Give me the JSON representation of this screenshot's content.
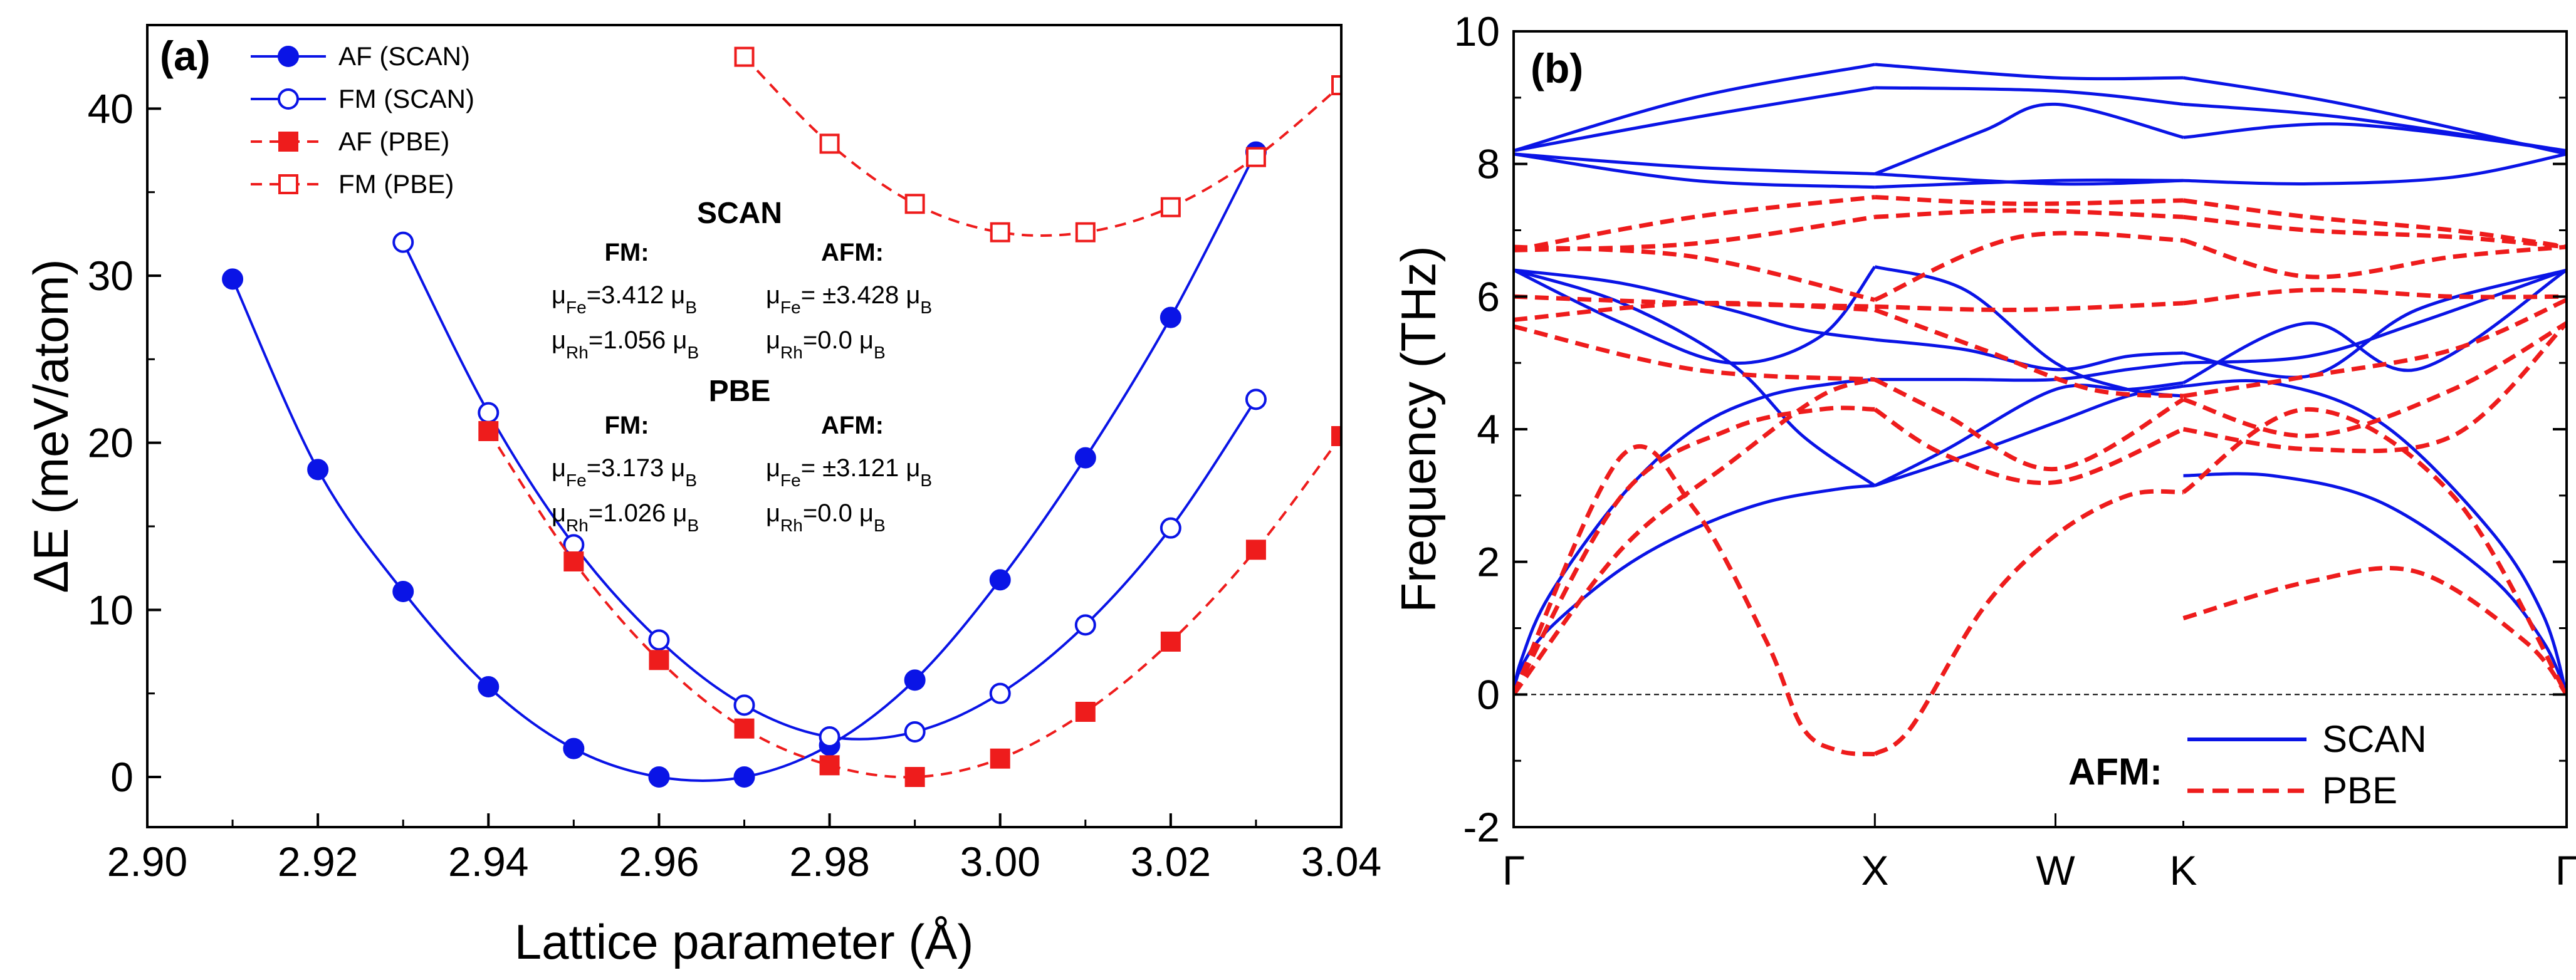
{
  "chart_data": [
    {
      "panel": "(a)",
      "type": "line",
      "xlabel": "Lattice parameter (Å)",
      "ylabel": "ΔE (meV/atom)",
      "xlim": [
        2.9,
        3.04
      ],
      "ylim": [
        -3,
        45
      ],
      "xticks": [
        2.9,
        2.92,
        2.94,
        2.96,
        2.98,
        3.0,
        3.02,
        3.04
      ],
      "xtick_labels": [
        "2.90",
        "2.92",
        "2.94",
        "2.96",
        "2.98",
        "3.00",
        "3.02",
        "3.04"
      ],
      "yticks": [
        0,
        10,
        20,
        30,
        40
      ],
      "ytick_labels": [
        "0",
        "10",
        "20",
        "30",
        "40"
      ],
      "series": [
        {
          "name": "AF (SCAN)",
          "color": "#0a14e6",
          "line": "solid",
          "marker": "circle",
          "fill": "filled",
          "x": [
            2.91,
            2.92,
            2.93,
            2.94,
            2.95,
            2.96,
            2.97,
            2.98,
            2.99,
            3.0,
            3.01,
            3.02,
            3.03
          ],
          "y": [
            29.8,
            18.4,
            11.1,
            5.4,
            1.7,
            0.0,
            0.0,
            1.9,
            5.8,
            11.8,
            19.1,
            27.5,
            37.4
          ]
        },
        {
          "name": "FM    (SCAN)",
          "color": "#0a14e6",
          "line": "solid",
          "marker": "circle",
          "fill": "open",
          "x": [
            2.93,
            2.94,
            2.95,
            2.96,
            2.97,
            2.98,
            2.99,
            3.0,
            3.01,
            3.02,
            3.03
          ],
          "y": [
            32.0,
            21.8,
            13.9,
            8.2,
            4.3,
            2.4,
            2.7,
            5.0,
            9.1,
            14.9,
            22.6
          ]
        },
        {
          "name": "AF  (PBE)",
          "color": "#ee1c1c",
          "line": "dashed",
          "marker": "square",
          "fill": "filled",
          "x": [
            2.94,
            2.95,
            2.96,
            2.97,
            2.98,
            2.99,
            3.0,
            3.01,
            3.02,
            3.03,
            3.04
          ],
          "y": [
            20.7,
            12.9,
            7.0,
            2.9,
            0.7,
            0.0,
            1.1,
            3.9,
            8.1,
            13.6,
            20.4
          ]
        },
        {
          "name": "FM    (PBE)",
          "color": "#ee1c1c",
          "line": "dashed",
          "marker": "square",
          "fill": "open",
          "x": [
            2.97,
            2.98,
            2.99,
            3.0,
            3.01,
            3.02,
            3.03,
            3.04
          ],
          "y": [
            43.1,
            37.9,
            34.3,
            32.6,
            32.6,
            34.1,
            37.1,
            41.4
          ]
        }
      ],
      "annotations": {
        "scan_title": "SCAN",
        "pbe_title": "PBE",
        "fm_label": "FM:",
        "afm_label": "AFM:",
        "scan_fm_fe": "μFe=3.412 μB",
        "scan_fm_rh": "μRh=1.056 μB",
        "scan_afm_fe": "μFe= ±3.428 μB",
        "scan_afm_rh": "μRh=0.0 μB",
        "pbe_fm_fe": "μFe=3.173 μB",
        "pbe_fm_rh": "μRh=1.026 μB",
        "pbe_afm_fe": "μFe= ±3.121 μB",
        "pbe_afm_rh": "μRh=0.0 μB"
      }
    },
    {
      "panel": "(b)",
      "type": "line",
      "xlabel": "",
      "ylabel": "Frequency (THz)",
      "ylim": [
        -2,
        10
      ],
      "yticks": [
        -2,
        0,
        2,
        4,
        6,
        8,
        10
      ],
      "ytick_labels": [
        "-2",
        "0",
        "2",
        "4",
        "6",
        "8",
        "10"
      ],
      "kpoints": [
        {
          "label": "Γ",
          "pos": 0.0
        },
        {
          "label": "X",
          "pos": 1.0
        },
        {
          "label": "W",
          "pos": 1.5
        },
        {
          "label": "K",
          "pos": 1.854
        },
        {
          "label": "Γ",
          "pos": 2.915
        }
      ],
      "legend_title": "AFM:",
      "legend": [
        {
          "name": "SCAN",
          "color": "#0a14e6",
          "line": "solid"
        },
        {
          "name": "PBE",
          "color": "#ee1c1c",
          "line": "dashed"
        }
      ],
      "series": [
        {
          "name": "SCAN",
          "color": "#0a14e6",
          "line": "solid",
          "bands": [
            {
              "x": [
                0,
                0.02,
                0.1,
                0.3,
                0.5,
                0.7,
                0.9,
                1.0
              ],
              "y": [
                0,
                0.4,
                1.0,
                1.9,
                2.5,
                2.9,
                3.1,
                3.15
              ]
            },
            {
              "x": [
                0,
                0.02,
                0.1,
                0.3,
                0.5,
                0.7,
                0.9,
                1.0
              ],
              "y": [
                0,
                0.5,
                1.5,
                3.0,
                4.0,
                4.5,
                4.7,
                4.75
              ]
            },
            {
              "x": [
                0,
                0.3,
                0.6,
                0.8,
                1.0
              ],
              "y": [
                6.4,
                5.9,
                5.0,
                3.9,
                3.15
              ]
            },
            {
              "x": [
                0,
                0.3,
                0.6,
                0.8,
                1.0
              ],
              "y": [
                6.4,
                6.2,
                5.8,
                5.5,
                5.35
              ]
            },
            {
              "x": [
                0,
                0.3,
                0.6,
                0.85,
                1.0
              ],
              "y": [
                6.4,
                5.6,
                5.0,
                5.4,
                6.45
              ]
            },
            {
              "x": [
                0,
                0.5,
                1.0
              ],
              "y": [
                8.15,
                7.95,
                7.85
              ]
            },
            {
              "x": [
                0,
                0.5,
                1.0
              ],
              "y": [
                8.2,
                8.7,
                9.15
              ]
            },
            {
              "x": [
                0,
                0.5,
                1.0
              ],
              "y": [
                8.2,
                9.0,
                9.5
              ]
            },
            {
              "x": [
                0,
                0.5,
                1.0
              ],
              "y": [
                8.15,
                7.75,
                7.65
              ]
            },
            {
              "x": [
                1.0,
                1.25,
                1.5,
                1.7,
                1.854
              ],
              "y": [
                3.15,
                3.6,
                4.1,
                4.5,
                4.65
              ]
            },
            {
              "x": [
                1.0,
                1.2,
                1.5,
                1.7,
                1.854
              ],
              "y": [
                3.15,
                3.7,
                4.6,
                4.6,
                4.7
              ]
            },
            {
              "x": [
                1.0,
                1.25,
                1.5,
                1.7,
                1.854
              ],
              "y": [
                4.75,
                4.75,
                4.75,
                4.9,
                5.0
              ]
            },
            {
              "x": [
                1.0,
                1.25,
                1.5,
                1.7,
                1.854
              ],
              "y": [
                5.35,
                5.2,
                4.9,
                5.1,
                5.15
              ]
            },
            {
              "x": [
                1.0,
                1.25,
                1.5,
                1.7,
                1.854
              ],
              "y": [
                6.45,
                6.1,
                5.0,
                4.6,
                4.5
              ]
            },
            {
              "x": [
                1.0,
                1.5,
                1.854
              ],
              "y": [
                7.85,
                7.7,
                7.75
              ]
            },
            {
              "x": [
                1.0,
                1.5,
                1.854
              ],
              "y": [
                7.65,
                7.75,
                7.75
              ]
            },
            {
              "x": [
                1.0,
                1.3,
                1.5,
                1.854
              ],
              "y": [
                7.85,
                8.5,
                8.9,
                8.4
              ]
            },
            {
              "x": [
                1.0,
                1.5,
                1.854
              ],
              "y": [
                9.15,
                9.1,
                8.9
              ]
            },
            {
              "x": [
                1.0,
                1.5,
                1.854
              ],
              "y": [
                9.5,
                9.3,
                9.3
              ]
            },
            {
              "x": [
                1.854,
                2.1,
                2.4,
                2.7,
                2.85,
                2.915
              ],
              "y": [
                3.3,
                3.3,
                2.9,
                1.8,
                0.8,
                0
              ]
            },
            {
              "x": [
                1.854,
                2.1,
                2.4,
                2.7,
                2.85,
                2.915
              ],
              "y": [
                4.65,
                4.7,
                4.1,
                2.5,
                1.2,
                0
              ]
            },
            {
              "x": [
                1.854,
                2.2,
                2.5,
                2.915
              ],
              "y": [
                4.7,
                5.6,
                4.9,
                6.4
              ]
            },
            {
              "x": [
                1.854,
                2.2,
                2.5,
                2.915
              ],
              "y": [
                5.0,
                5.1,
                5.6,
                6.4
              ]
            },
            {
              "x": [
                1.854,
                2.2,
                2.5,
                2.915
              ],
              "y": [
                5.15,
                4.8,
                5.8,
                6.4
              ]
            },
            {
              "x": [
                1.854,
                2.2,
                2.6,
                2.915
              ],
              "y": [
                7.75,
                7.7,
                7.8,
                8.15
              ]
            },
            {
              "x": [
                1.854,
                2.3,
                2.915
              ],
              "y": [
                8.4,
                8.6,
                8.2
              ]
            },
            {
              "x": [
                1.854,
                2.3,
                2.915
              ],
              "y": [
                8.9,
                8.7,
                8.2
              ]
            },
            {
              "x": [
                1.854,
                2.3,
                2.915
              ],
              "y": [
                9.3,
                8.9,
                8.15
              ]
            }
          ]
        },
        {
          "name": "PBE",
          "color": "#ee1c1c",
          "line": "dashed",
          "bands": [
            {
              "x": [
                0,
                0.3,
                0.5,
                0.7,
                0.8,
                0.9,
                1.0
              ],
              "y": [
                0,
                3.6,
                2.8,
                0.8,
                -0.5,
                -0.85,
                -0.9
              ]
            },
            {
              "x": [
                0,
                0.3,
                0.6,
                0.85,
                1.0
              ],
              "y": [
                0,
                3.0,
                4.0,
                4.3,
                4.3
              ]
            },
            {
              "x": [
                0,
                0.3,
                0.6,
                0.85,
                1.0
              ],
              "y": [
                0,
                2.2,
                3.5,
                4.5,
                4.75
              ]
            },
            {
              "x": [
                0,
                0.5,
                1.0
              ],
              "y": [
                5.55,
                4.9,
                4.75
              ]
            },
            {
              "x": [
                0,
                0.5,
                1.0
              ],
              "y": [
                5.65,
                5.9,
                5.8
              ]
            },
            {
              "x": [
                0,
                0.5,
                1.0
              ],
              "y": [
                6.0,
                5.9,
                5.85
              ]
            },
            {
              "x": [
                0,
                0.5,
                1.0
              ],
              "y": [
                6.7,
                6.8,
                7.2
              ]
            },
            {
              "x": [
                0,
                0.5,
                1.0
              ],
              "y": [
                6.7,
                7.2,
                7.5
              ]
            },
            {
              "x": [
                0,
                0.5,
                1.0
              ],
              "y": [
                6.75,
                6.6,
                5.95
              ]
            },
            {
              "x": [
                1.0,
                1.1,
                1.3,
                1.5,
                1.7,
                1.854
              ],
              "y": [
                -0.9,
                -0.5,
                1.3,
                2.4,
                3.0,
                3.05
              ]
            },
            {
              "x": [
                1.0,
                1.2,
                1.5,
                1.854
              ],
              "y": [
                4.3,
                3.6,
                3.2,
                4.0
              ]
            },
            {
              "x": [
                1.0,
                1.2,
                1.5,
                1.854
              ],
              "y": [
                4.75,
                4.2,
                3.4,
                4.45
              ]
            },
            {
              "x": [
                1.0,
                1.3,
                1.6,
                1.854
              ],
              "y": [
                5.8,
                5.2,
                4.6,
                4.5
              ]
            },
            {
              "x": [
                1.0,
                1.4,
                1.854
              ],
              "y": [
                5.85,
                5.8,
                5.9
              ]
            },
            {
              "x": [
                1.0,
                1.4,
                1.854
              ],
              "y": [
                7.2,
                7.3,
                7.2
              ]
            },
            {
              "x": [
                1.0,
                1.4,
                1.854
              ],
              "y": [
                7.5,
                7.4,
                7.45
              ]
            },
            {
              "x": [
                1.0,
                1.4,
                1.854
              ],
              "y": [
                5.95,
                6.9,
                6.85
              ]
            },
            {
              "x": [
                1.854,
                2.2,
                2.5,
                2.8,
                2.915
              ],
              "y": [
                1.15,
                1.7,
                1.85,
                0.8,
                0
              ]
            },
            {
              "x": [
                1.854,
                2.2,
                2.6,
                2.915
              ],
              "y": [
                3.05,
                4.3,
                3.0,
                0
              ]
            },
            {
              "x": [
                1.854,
                2.2,
                2.6,
                2.915
              ],
              "y": [
                4.0,
                3.7,
                3.9,
                5.6
              ]
            },
            {
              "x": [
                1.854,
                2.2,
                2.6,
                2.915
              ],
              "y": [
                4.45,
                3.9,
                4.6,
                5.6
              ]
            },
            {
              "x": [
                1.854,
                2.2,
                2.6,
                2.915
              ],
              "y": [
                4.5,
                4.8,
                5.2,
                5.95
              ]
            },
            {
              "x": [
                1.854,
                2.2,
                2.6,
                2.915
              ],
              "y": [
                5.9,
                6.1,
                6.0,
                6.0
              ]
            },
            {
              "x": [
                1.854,
                2.2,
                2.6,
                2.915
              ],
              "y": [
                6.85,
                6.3,
                6.6,
                6.75
              ]
            },
            {
              "x": [
                1.854,
                2.2,
                2.6,
                2.915
              ],
              "y": [
                7.2,
                7.0,
                6.9,
                6.75
              ]
            },
            {
              "x": [
                1.854,
                2.2,
                2.6,
                2.915
              ],
              "y": [
                7.45,
                7.2,
                7.0,
                6.75
              ]
            }
          ]
        }
      ]
    }
  ]
}
